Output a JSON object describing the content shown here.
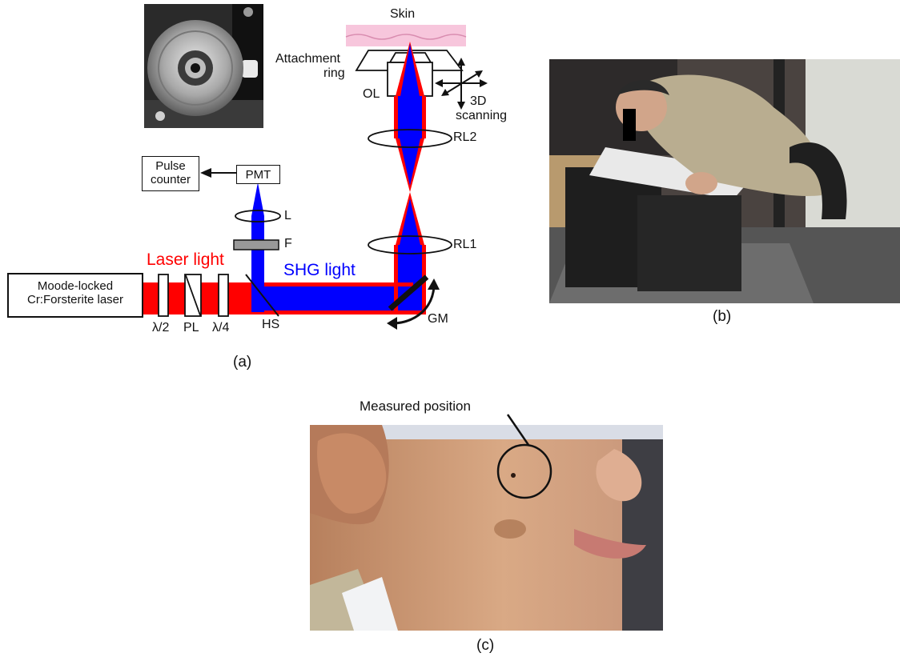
{
  "panel_a": {
    "caption": "(a)",
    "laser_box": [
      "Moode-locked",
      "Cr:Forsterite laser"
    ],
    "pulse_counter": [
      "Pulse",
      "counter"
    ],
    "pmt": "PMT",
    "laser_light": "Laser light",
    "shg_light": "SHG light",
    "lens_l": "L",
    "filter_f": "F",
    "half_wave": "λ/2",
    "polarizer": "PL",
    "quarter_wave": "λ/4",
    "harmonic_separator": "HS",
    "galvo_mirror": "GM",
    "relay_lens_1": "RL1",
    "relay_lens_2": "RL2",
    "objective": "OL",
    "attachment_ring": [
      "Attachment",
      "ring"
    ],
    "skin": "Skin",
    "scanning": [
      "3D",
      "scanning"
    ],
    "colors": {
      "laser": "#ff0000",
      "shg": "#0000ff",
      "skin": "#f7c6dc",
      "filter": "#999999"
    }
  },
  "panel_b": {
    "caption": "(b)"
  },
  "panel_c": {
    "caption": "(c)",
    "annotation": "Measured position"
  }
}
